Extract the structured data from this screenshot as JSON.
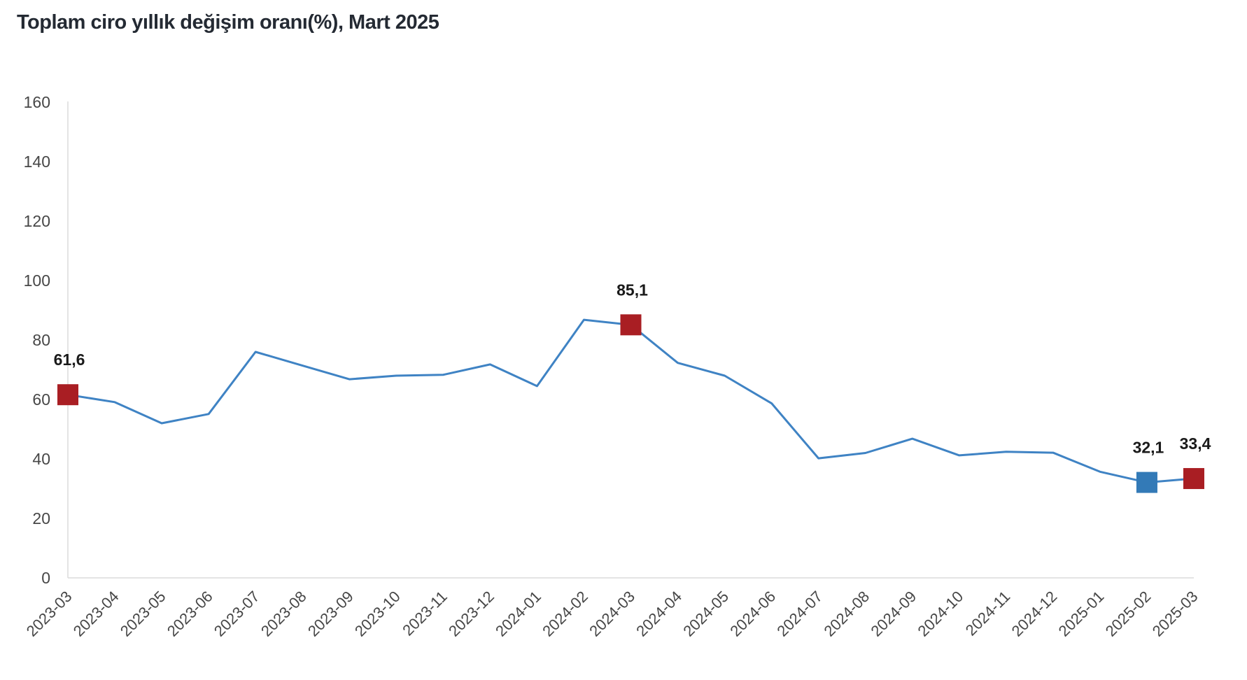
{
  "header": {
    "title": "Toplam ciro yıllık değişim oranı(%), Mart 2025"
  },
  "chart_data": {
    "type": "line",
    "title": "Toplam ciro yıllık değişim oranı(%), Mart 2025",
    "xlabel": "",
    "ylabel": "",
    "ylim": [
      0,
      160
    ],
    "ytick_step": 20,
    "grid": "off",
    "legend": "none",
    "x_tick_rotation": -45,
    "categories": [
      "2023-03",
      "2023-04",
      "2023-05",
      "2023-06",
      "2023-07",
      "2023-08",
      "2023-09",
      "2023-10",
      "2023-11",
      "2023-12",
      "2024-01",
      "2024-02",
      "2024-03",
      "2024-04",
      "2024-05",
      "2024-06",
      "2024-07",
      "2024-08",
      "2024-09",
      "2024-10",
      "2024-11",
      "2024-12",
      "2025-01",
      "2025-02",
      "2025-03"
    ],
    "values": [
      61.6,
      59.1,
      52.0,
      55.1,
      76.0,
      71.4,
      66.8,
      68.0,
      68.3,
      71.8,
      64.5,
      86.8,
      85.1,
      72.3,
      68.0,
      58.7,
      40.2,
      42.0,
      46.8,
      41.2,
      42.4,
      42.1,
      35.7,
      32.1,
      33.4
    ],
    "annotated_points": [
      {
        "category": "2023-03",
        "index": 0,
        "label": "61,6",
        "marker": "red"
      },
      {
        "category": "2024-03",
        "index": 12,
        "label": "85,1",
        "marker": "red"
      },
      {
        "category": "2025-02",
        "index": 23,
        "label": "32,1",
        "marker": "blue"
      },
      {
        "category": "2025-03",
        "index": 24,
        "label": "33,4",
        "marker": "red"
      }
    ],
    "colors": {
      "line": "#3F83C4",
      "marker_red": "#A91E23",
      "marker_blue": "#337AB7",
      "axis_line": "#DCDCDC",
      "tick_text": "#474747",
      "point_label_text": "#1A1A1A",
      "title_text": "#242A33",
      "background": "#FFFFFF"
    }
  }
}
